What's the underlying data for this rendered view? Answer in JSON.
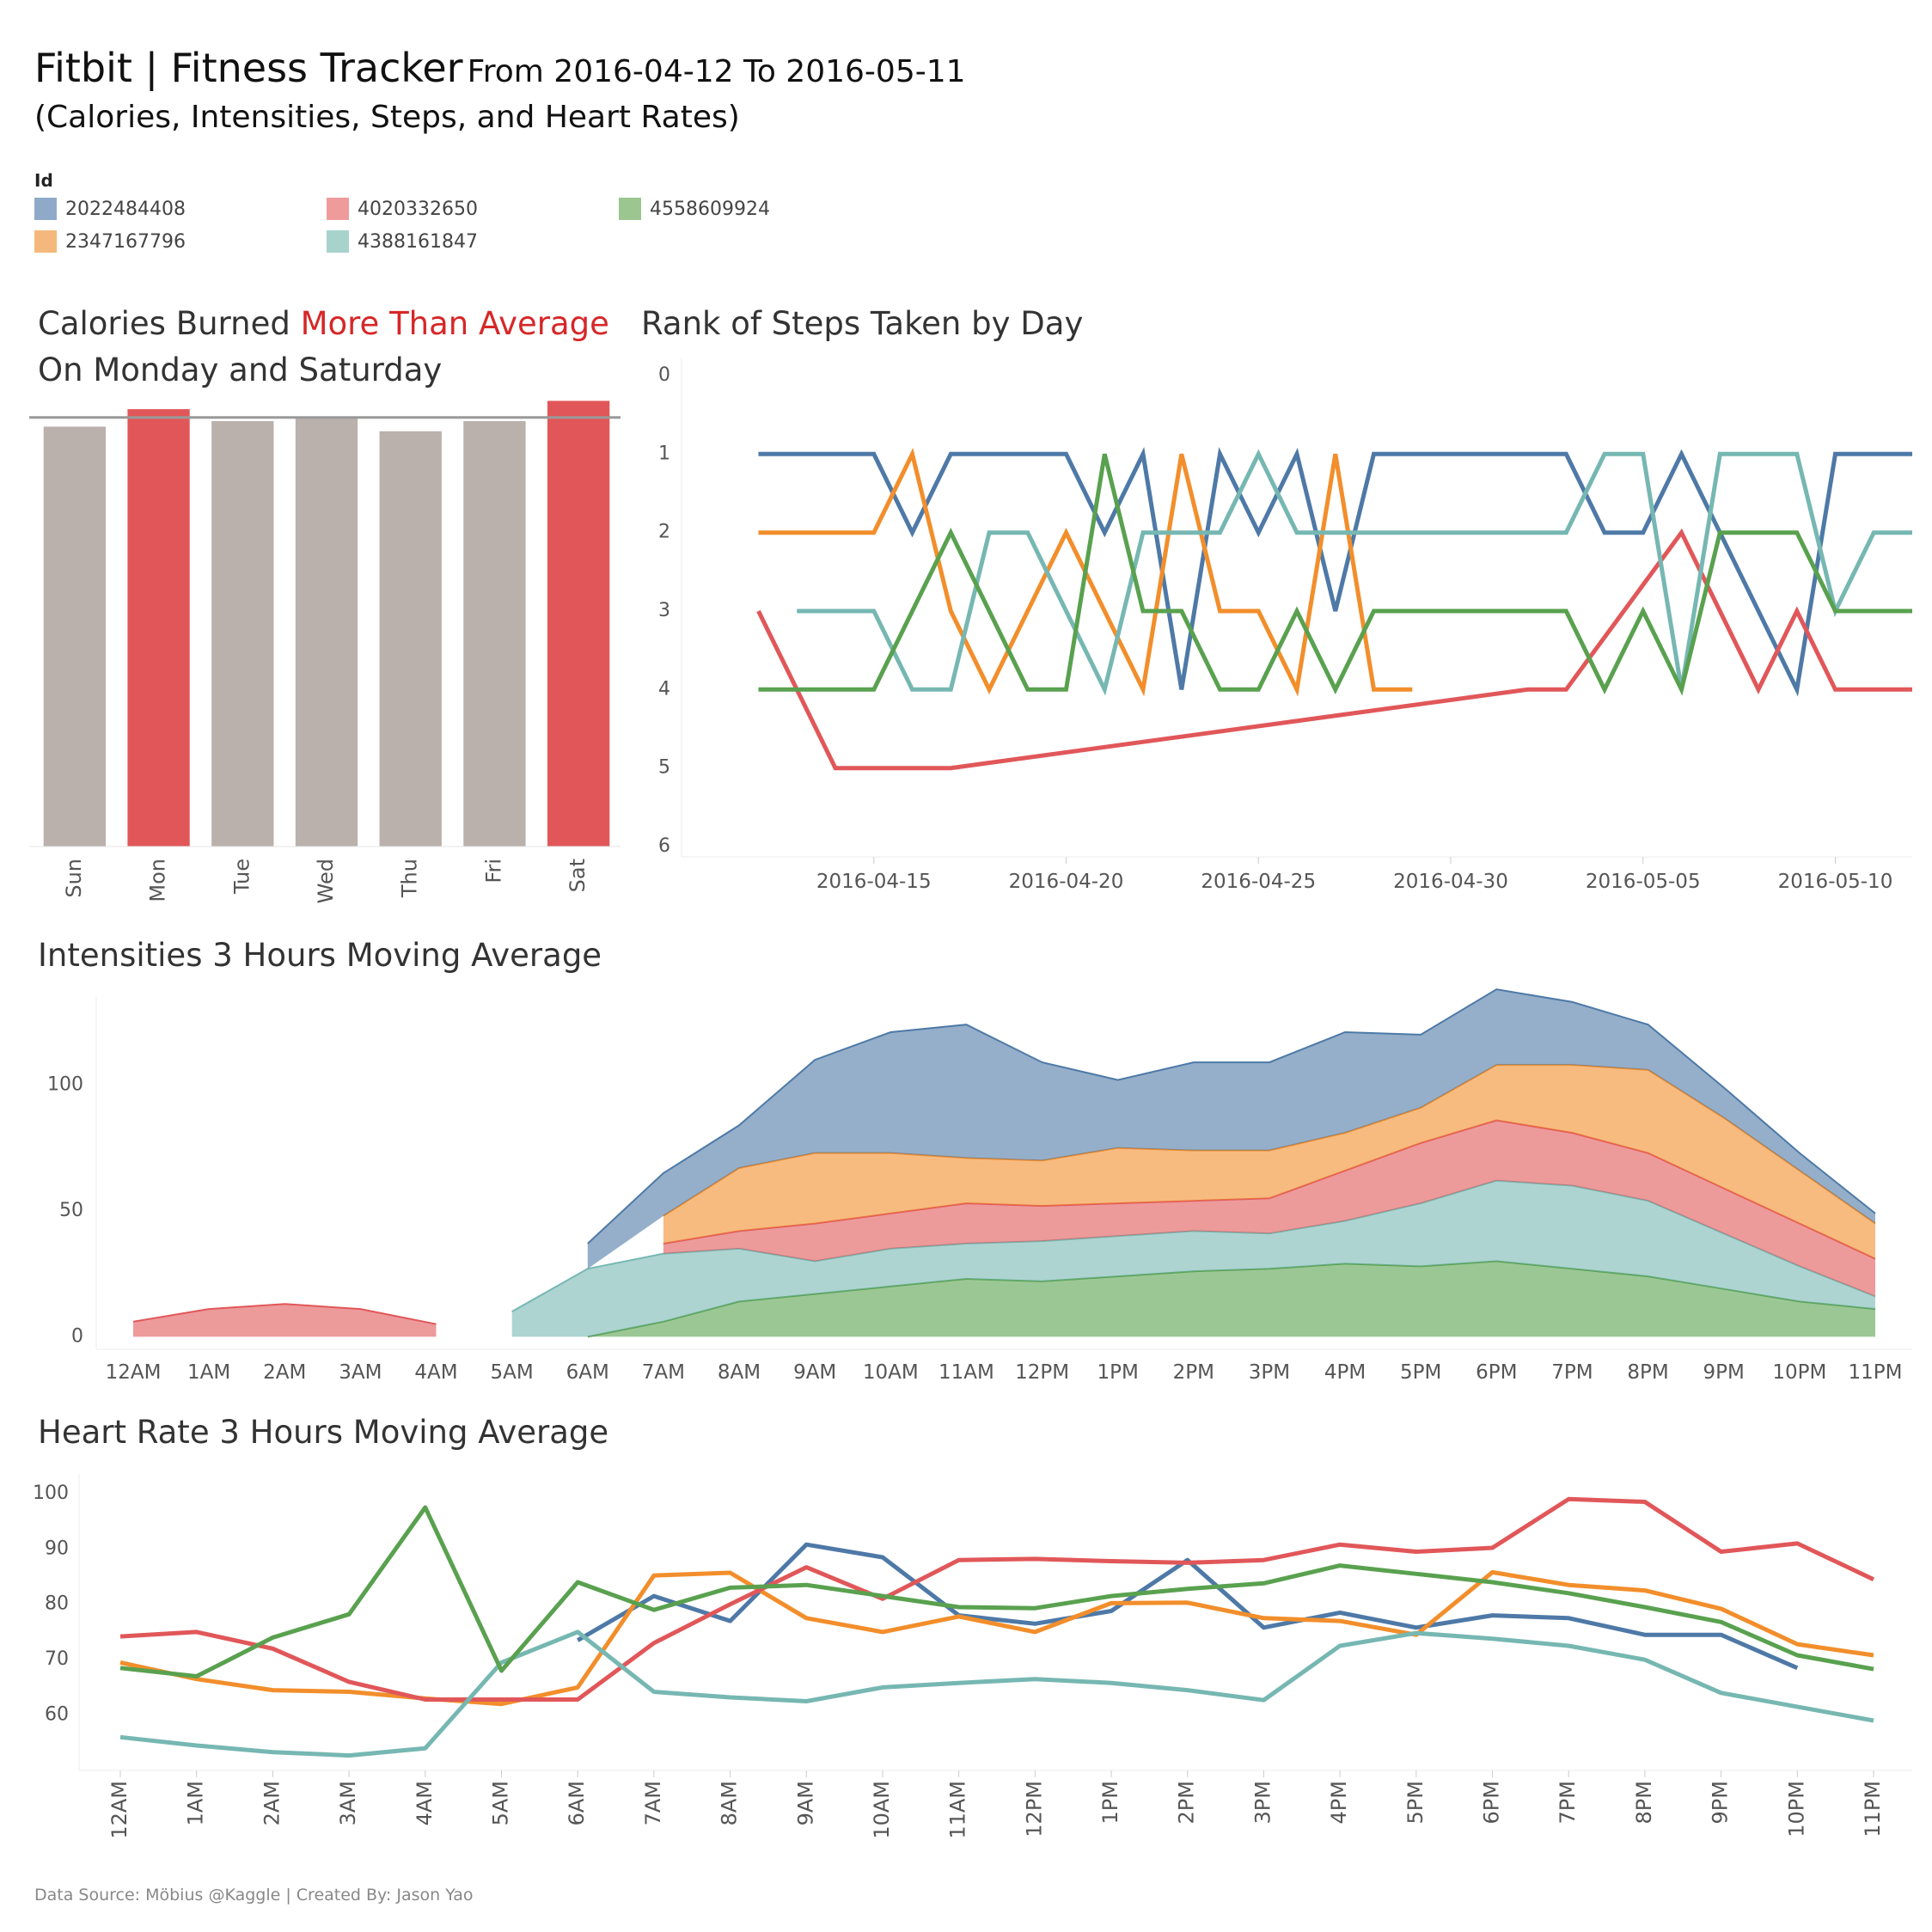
{
  "title": {
    "main": "Fitbit | Fitness Tracker",
    "range": "From 2016-04-12 To 2016-05-11",
    "subtitle": "(Calories, Intensities, Steps, and Heart Rates)"
  },
  "legend": {
    "title": "Id",
    "items": [
      {
        "id": "2022484408",
        "color": "#8fa9c9"
      },
      {
        "id": "2347167796",
        "color": "#f5b87c"
      },
      {
        "id": "4020332650",
        "color": "#ef9b9b"
      },
      {
        "id": "4388161847",
        "color": "#a8d3cd"
      },
      {
        "id": "4558609924",
        "color": "#9bc68f"
      }
    ]
  },
  "series_colors": {
    "2022484408": "#4e79a7",
    "2347167796": "#f28e2b",
    "4020332650": "#e15759",
    "4388161847": "#76b7b2",
    "4558609924": "#59a14f"
  },
  "panels": {
    "calories": {
      "title_a": "Calories Burned ",
      "title_highlight": "More Than Average",
      "title_b": "On Monday and Saturday"
    },
    "steps": {
      "title": "Rank of Steps Taken by Day"
    },
    "intensities": {
      "title": "Intensities 3 Hours Moving Average"
    },
    "heart": {
      "title": "Heart Rate 3 Hours Moving Average"
    }
  },
  "footer": "Data Source:  Möbius @Kaggle | Created By: Jason Yao",
  "chart_data": [
    {
      "id": "calories",
      "type": "bar",
      "categories": [
        "Sun",
        "Mon",
        "Tue",
        "Wed",
        "Thu",
        "Fri",
        "Sat"
      ],
      "values": [
        2280,
        2375,
        2310,
        2330,
        2255,
        2310,
        2420
      ],
      "highlight": [
        "Mon",
        "Sat"
      ],
      "highlight_color": "#e15759",
      "base_color": "#bab0ac",
      "average": 2330,
      "ylim": [
        0,
        2450
      ],
      "y_axis_labels": false
    },
    {
      "id": "steps_rank",
      "type": "line",
      "x_ticks": [
        "2016-04-15",
        "2016-04-20",
        "2016-04-25",
        "2016-04-30",
        "2016-05-05",
        "2016-05-10"
      ],
      "xlim": [
        "2016-04-10",
        "2016-05-12"
      ],
      "y_ticks": [
        0,
        1,
        2,
        3,
        4,
        5,
        6
      ],
      "ylim": [
        0,
        6
      ],
      "y_reversed": true,
      "series": [
        {
          "name": "2022484408",
          "points": [
            [
              "2016-04-12",
              1
            ],
            [
              "2016-04-15",
              1
            ],
            [
              "2016-04-16",
              2
            ],
            [
              "2016-04-17",
              1
            ],
            [
              "2016-04-20",
              1
            ],
            [
              "2016-04-21",
              2
            ],
            [
              "2016-04-22",
              1
            ],
            [
              "2016-04-23",
              4
            ],
            [
              "2016-04-24",
              1
            ],
            [
              "2016-04-25",
              2
            ],
            [
              "2016-04-26",
              1
            ],
            [
              "2016-04-27",
              3
            ],
            [
              "2016-04-28",
              1
            ],
            [
              "2016-05-03",
              1
            ],
            [
              "2016-05-04",
              2
            ],
            [
              "2016-05-05",
              2
            ],
            [
              "2016-05-06",
              1
            ],
            [
              "2016-05-09",
              4
            ],
            [
              "2016-05-10",
              1
            ],
            [
              "2016-05-12",
              1
            ]
          ]
        },
        {
          "name": "2347167796",
          "points": [
            [
              "2016-04-12",
              2
            ],
            [
              "2016-04-15",
              2
            ],
            [
              "2016-04-16",
              1
            ],
            [
              "2016-04-17",
              3
            ],
            [
              "2016-04-18",
              4
            ],
            [
              "2016-04-20",
              2
            ],
            [
              "2016-04-22",
              4
            ],
            [
              "2016-04-23",
              1
            ],
            [
              "2016-04-24",
              3
            ],
            [
              "2016-04-25",
              3
            ],
            [
              "2016-04-26",
              4
            ],
            [
              "2016-04-27",
              1
            ],
            [
              "2016-04-28",
              4
            ],
            [
              "2016-04-29",
              4
            ]
          ]
        },
        {
          "name": "4020332650",
          "points": [
            [
              "2016-04-12",
              3
            ],
            [
              "2016-04-14",
              5
            ],
            [
              "2016-04-17",
              5
            ],
            [
              "2016-05-02",
              4
            ],
            [
              "2016-05-03",
              4
            ],
            [
              "2016-05-06",
              2
            ],
            [
              "2016-05-08",
              4
            ],
            [
              "2016-05-09",
              3
            ],
            [
              "2016-05-10",
              4
            ],
            [
              "2016-05-12",
              4
            ]
          ]
        },
        {
          "name": "4388161847",
          "points": [
            [
              "2016-04-13",
              3
            ],
            [
              "2016-04-15",
              3
            ],
            [
              "2016-04-16",
              4
            ],
            [
              "2016-04-17",
              4
            ],
            [
              "2016-04-18",
              2
            ],
            [
              "2016-04-19",
              2
            ],
            [
              "2016-04-21",
              4
            ],
            [
              "2016-04-22",
              2
            ],
            [
              "2016-04-24",
              2
            ],
            [
              "2016-04-25",
              1
            ],
            [
              "2016-04-26",
              2
            ],
            [
              "2016-05-03",
              2
            ],
            [
              "2016-05-04",
              1
            ],
            [
              "2016-05-05",
              1
            ],
            [
              "2016-05-06",
              4
            ],
            [
              "2016-05-07",
              1
            ],
            [
              "2016-05-09",
              1
            ],
            [
              "2016-05-10",
              3
            ],
            [
              "2016-05-11",
              2
            ],
            [
              "2016-05-12",
              2
            ]
          ]
        },
        {
          "name": "4558609924",
          "points": [
            [
              "2016-04-12",
              4
            ],
            [
              "2016-04-15",
              4
            ],
            [
              "2016-04-17",
              2
            ],
            [
              "2016-04-19",
              4
            ],
            [
              "2016-04-20",
              4
            ],
            [
              "2016-04-21",
              1
            ],
            [
              "2016-04-22",
              3
            ],
            [
              "2016-04-23",
              3
            ],
            [
              "2016-04-24",
              4
            ],
            [
              "2016-04-25",
              4
            ],
            [
              "2016-04-26",
              3
            ],
            [
              "2016-04-27",
              4
            ],
            [
              "2016-04-28",
              3
            ],
            [
              "2016-05-03",
              3
            ],
            [
              "2016-05-04",
              4
            ],
            [
              "2016-05-05",
              3
            ],
            [
              "2016-05-06",
              4
            ],
            [
              "2016-05-07",
              2
            ],
            [
              "2016-05-09",
              2
            ],
            [
              "2016-05-10",
              3
            ],
            [
              "2016-05-12",
              3
            ]
          ]
        }
      ]
    },
    {
      "id": "intensities",
      "type": "area",
      "stacked": true,
      "categories": [
        "12AM",
        "1AM",
        "2AM",
        "3AM",
        "4AM",
        "5AM",
        "6AM",
        "7AM",
        "8AM",
        "9AM",
        "10AM",
        "11AM",
        "12PM",
        "1PM",
        "2PM",
        "3PM",
        "4PM",
        "5PM",
        "6PM",
        "7PM",
        "8PM",
        "9PM",
        "10PM",
        "11PM"
      ],
      "y_ticks": [
        0,
        50,
        100
      ],
      "ylim": [
        -5,
        135
      ],
      "series": [
        {
          "name": "4558609924",
          "values": [
            null,
            null,
            null,
            null,
            null,
            null,
            0,
            6,
            14,
            17,
            20,
            23,
            22,
            24,
            26,
            27,
            29,
            28,
            30,
            27,
            24,
            19,
            14,
            11
          ]
        },
        {
          "name": "4388161847",
          "values": [
            null,
            null,
            null,
            null,
            null,
            10,
            27,
            27,
            21,
            13,
            15,
            14,
            16,
            16,
            16,
            14,
            17,
            25,
            32,
            33,
            30,
            22,
            14,
            5
          ]
        },
        {
          "name": "4020332650",
          "values": [
            6,
            11,
            13,
            11,
            5,
            null,
            null,
            4,
            7,
            15,
            14,
            16,
            14,
            13,
            12,
            14,
            20,
            24,
            24,
            21,
            19,
            18,
            17,
            15
          ]
        },
        {
          "name": "2347167796",
          "values": [
            null,
            null,
            null,
            null,
            null,
            null,
            null,
            11,
            25,
            28,
            24,
            18,
            18,
            22,
            20,
            19,
            15,
            14,
            22,
            27,
            33,
            28,
            21,
            14
          ]
        },
        {
          "name": "2022484408",
          "values": [
            null,
            null,
            null,
            null,
            null,
            null,
            10,
            17,
            17,
            37,
            48,
            53,
            39,
            27,
            35,
            35,
            40,
            29,
            30,
            25,
            18,
            12,
            7,
            4
          ]
        }
      ]
    },
    {
      "id": "heart_rate",
      "type": "line",
      "categories": [
        "12AM",
        "1AM",
        "2AM",
        "3AM",
        "4AM",
        "5AM",
        "6AM",
        "7AM",
        "8AM",
        "9AM",
        "10AM",
        "11AM",
        "12PM",
        "1PM",
        "2PM",
        "3PM",
        "4PM",
        "5PM",
        "6PM",
        "7PM",
        "8PM",
        "9PM",
        "10PM",
        "11PM"
      ],
      "y_ticks": [
        60,
        70,
        80,
        90,
        100
      ],
      "ylim": [
        50,
        102
      ],
      "series": [
        {
          "name": "2022484408",
          "values": [
            null,
            null,
            null,
            null,
            null,
            null,
            73.5,
            81.5,
            77,
            90.8,
            88.5,
            78,
            76.5,
            78.8,
            88,
            75.8,
            78.5,
            75.8,
            78,
            77.5,
            74.5,
            74.5,
            68.5,
            null
          ]
        },
        {
          "name": "2347167796",
          "values": [
            69.5,
            66.5,
            64.5,
            64.2,
            63,
            62,
            65,
            85.2,
            85.7,
            77.5,
            75,
            77.8,
            75,
            80.2,
            80.3,
            77.5,
            77,
            74.5,
            85.8,
            83.5,
            82.5,
            79.2,
            72.8,
            70.8
          ]
        },
        {
          "name": "4020332650",
          "values": [
            74.2,
            75,
            72,
            66,
            62.8,
            62.8,
            62.8,
            73,
            80,
            86.7,
            81,
            88,
            88.2,
            87.8,
            87.5,
            88,
            90.8,
            89.5,
            90.2,
            99,
            98.5,
            89.5,
            91,
            84.5
          ]
        },
        {
          "name": "4388161847",
          "values": [
            56,
            54.5,
            53.3,
            52.7,
            54,
            69.5,
            75,
            64.2,
            63.2,
            62.5,
            65,
            65.8,
            66.5,
            65.8,
            64.5,
            62.7,
            72.5,
            74.8,
            73.8,
            72.5,
            70,
            64,
            61.5,
            59
          ]
        },
        {
          "name": "4558609924",
          "values": [
            68.5,
            67,
            74,
            78.2,
            97.5,
            68,
            84,
            79,
            83,
            83.5,
            81.5,
            79.5,
            79.3,
            81.5,
            82.8,
            83.8,
            87,
            85.5,
            84,
            82,
            79.5,
            76.8,
            70.8,
            68.3
          ]
        }
      ]
    }
  ]
}
